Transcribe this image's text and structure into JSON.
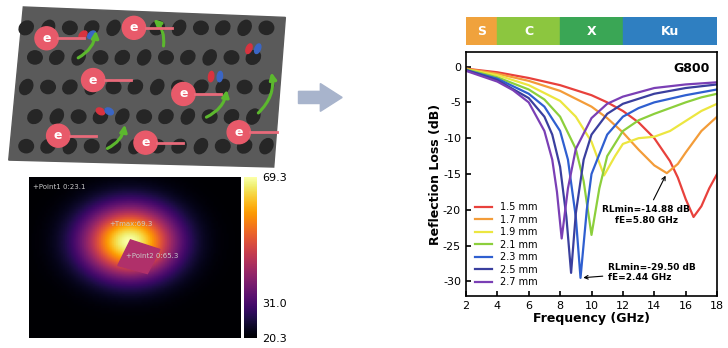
{
  "chart_data": {
    "type": "line",
    "title": "G800",
    "xlabel": "Frequency (GHz)",
    "ylabel": "Reflection Loss (dB)",
    "xlim": [
      2,
      18
    ],
    "xticks": [
      2,
      4,
      6,
      8,
      10,
      12,
      14,
      16,
      18
    ],
    "ylim": [
      -32,
      2
    ],
    "yticks": [
      0,
      -5,
      -10,
      -15,
      -20,
      -25,
      -30
    ],
    "grid": false,
    "legend": "lower left",
    "line_style": "solid",
    "bands": [
      {
        "label": "S",
        "start": 2,
        "end": 4,
        "color": "#f0a23c"
      },
      {
        "label": "C",
        "start": 4,
        "end": 8,
        "color": "#8cc63f"
      },
      {
        "label": "X",
        "start": 8,
        "end": 12,
        "color": "#3aa655"
      },
      {
        "label": "Ku",
        "start": 12,
        "end": 18,
        "color": "#2f7fc1"
      }
    ],
    "series": [
      {
        "name": "1.5 mm",
        "color": "#e8413c",
        "x": [
          2,
          4,
          6,
          8,
          10,
          11,
          12,
          13,
          14,
          15,
          15.5,
          16,
          16.5,
          17,
          17.5,
          18
        ],
        "values": [
          -0.3,
          -0.8,
          -1.6,
          -2.6,
          -4.0,
          -5.0,
          -6.2,
          -7.8,
          -10.0,
          -13.2,
          -15.5,
          -18.5,
          -21.0,
          -19.5,
          -17.0,
          -15.0
        ]
      },
      {
        "name": "1.7 mm",
        "color": "#f39c39",
        "x": [
          2,
          4,
          6,
          8,
          10,
          11,
          12,
          13,
          14,
          14.8,
          15.5,
          16,
          17,
          18
        ],
        "values": [
          -0.3,
          -1.0,
          -2.0,
          -3.4,
          -5.6,
          -7.2,
          -9.2,
          -11.6,
          -13.8,
          -14.88,
          -13.6,
          -12.0,
          -9.0,
          -7.0
        ]
      },
      {
        "name": "1.9 mm",
        "color": "#ece640",
        "x": [
          2,
          4,
          6,
          8,
          9,
          10,
          10.8,
          11.5,
          12,
          13,
          14,
          15,
          16,
          17,
          18
        ],
        "values": [
          -0.4,
          -1.2,
          -2.6,
          -4.8,
          -7.0,
          -10.5,
          -15.2,
          -12.5,
          -10.8,
          -10.0,
          -9.8,
          -9.0,
          -7.6,
          -6.2,
          -5.2
        ]
      },
      {
        "name": "2.1 mm",
        "color": "#8ccf3c",
        "x": [
          2,
          4,
          6,
          7,
          8,
          9,
          9.5,
          10,
          10.5,
          11,
          12,
          13,
          14,
          15,
          16,
          17,
          18
        ],
        "values": [
          -0.4,
          -1.5,
          -3.2,
          -4.6,
          -7.0,
          -11.5,
          -16.0,
          -23.5,
          -17.0,
          -12.5,
          -9.0,
          -7.5,
          -6.6,
          -5.8,
          -5.0,
          -4.3,
          -3.8
        ]
      },
      {
        "name": "2.3 mm",
        "color": "#2f5fd0",
        "x": [
          2,
          4,
          6,
          7,
          8,
          8.5,
          9,
          9.3,
          9.7,
          10,
          11,
          12,
          13,
          14,
          16,
          18
        ],
        "values": [
          -0.5,
          -1.7,
          -3.8,
          -5.6,
          -9.0,
          -13.0,
          -21.0,
          -29.5,
          -20.0,
          -15.0,
          -9.5,
          -7.0,
          -5.8,
          -5.0,
          -4.0,
          -3.2
        ]
      },
      {
        "name": "2.5 mm",
        "color": "#3a3f9e",
        "x": [
          2,
          4,
          6,
          7,
          7.5,
          8,
          8.4,
          8.7,
          9,
          9.5,
          10,
          11,
          12,
          14,
          16,
          18
        ],
        "values": [
          -0.5,
          -1.9,
          -4.4,
          -7.0,
          -9.5,
          -14.0,
          -21.0,
          -28.8,
          -20.5,
          -13.0,
          -9.5,
          -6.6,
          -5.2,
          -3.8,
          -3.0,
          -2.5
        ]
      },
      {
        "name": "2.7 mm",
        "color": "#7a3fb5",
        "x": [
          2,
          4,
          5,
          6,
          7,
          7.5,
          7.8,
          8.1,
          8.5,
          9,
          10,
          11,
          12,
          14,
          16,
          18
        ],
        "values": [
          -0.6,
          -2.1,
          -3.3,
          -5.0,
          -9.0,
          -13.0,
          -17.5,
          -24.0,
          -17.0,
          -11.5,
          -7.2,
          -5.2,
          -4.2,
          -3.0,
          -2.5,
          -2.2
        ]
      }
    ],
    "annotations": [
      {
        "text": "RLmin=-14.88 dB\nfE=5.80 GHz",
        "x": 14.8,
        "y": -14.88
      },
      {
        "text": "RLmin=-29.50 dB\nfE=2.44 GHz",
        "x": 9.3,
        "y": -29.5
      }
    ]
  },
  "schematic": {
    "electrons": [
      "e",
      "e",
      "e",
      "e",
      "e",
      "e",
      "e"
    ]
  },
  "thermal_image": {
    "labels": [
      "+Point1 0:23.1",
      "+Tmax:69.3",
      "+Point2 0:65.3"
    ],
    "colorbar": {
      "range": [
        20.3,
        69.3
      ],
      "ticks": [
        20.3,
        31.0,
        69.3
      ]
    }
  }
}
